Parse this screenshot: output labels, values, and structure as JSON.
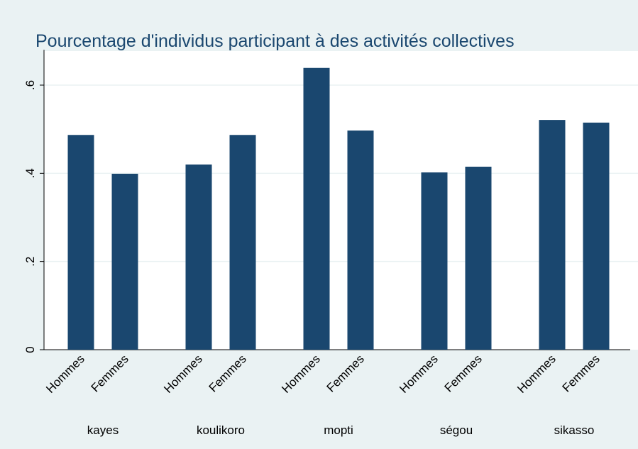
{
  "chart_data": {
    "type": "grouped-bar",
    "title": "Pourcentage d'individus participant à des activités collectives",
    "categories": [
      "Hommes",
      "Femmes"
    ],
    "groups": [
      {
        "name": "kayes",
        "values": [
          0.487,
          0.399
        ]
      },
      {
        "name": "koulikoro",
        "values": [
          0.42,
          0.487
        ]
      },
      {
        "name": "mopti",
        "values": [
          0.639,
          0.497
        ]
      },
      {
        "name": "ségou",
        "values": [
          0.402,
          0.415
        ]
      },
      {
        "name": "sikasso",
        "values": [
          0.521,
          0.515
        ]
      }
    ],
    "color": "#1a476f",
    "ylim": [
      0,
      0.68
    ],
    "yticks": [
      0,
      {
        "value": 0.2,
        "label": ".2"
      },
      {
        "value": 0.4,
        "label": ".4"
      },
      {
        "value": 0.6,
        "label": ".6"
      }
    ],
    "grid": true
  }
}
